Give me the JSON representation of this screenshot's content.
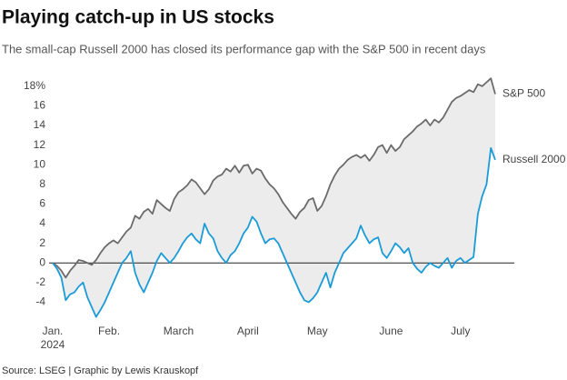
{
  "chart_data": {
    "type": "line",
    "title": "Playing catch-up in US stocks",
    "subtitle": "The small-cap Russell 2000 has closed its performance gap with the S&P 500 in recent days",
    "source": "Source: LSEG | Graphic by Lewis Krauskopf",
    "x_sublabel": "2024",
    "categories": [
      "Jan.",
      null,
      null,
      null,
      null,
      null,
      null,
      null,
      null,
      null,
      null,
      null,
      null,
      "Feb.",
      null,
      null,
      null,
      null,
      null,
      null,
      null,
      null,
      null,
      null,
      null,
      null,
      null,
      null,
      null,
      "March",
      null,
      null,
      null,
      null,
      null,
      null,
      null,
      null,
      null,
      null,
      null,
      null,
      null,
      null,
      null,
      "April",
      null,
      null,
      null,
      null,
      null,
      null,
      null,
      null,
      null,
      null,
      null,
      null,
      null,
      null,
      null,
      "May",
      null,
      null,
      null,
      null,
      null,
      null,
      null,
      null,
      null,
      null,
      null,
      null,
      null,
      null,
      null,
      null,
      "June",
      null,
      null,
      null,
      null,
      null,
      null,
      null,
      null,
      null,
      null,
      null,
      null,
      null,
      null,
      null,
      "July",
      null,
      null,
      null,
      null,
      null,
      null,
      null,
      null
    ],
    "series": [
      {
        "name": "S&P 500",
        "color": "#6b6b6b",
        "values": [
          0,
          -0.3,
          -0.8,
          -1.5,
          -0.8,
          -0.3,
          0.3,
          0.2,
          0,
          -0.2,
          0.3,
          1.0,
          1.6,
          2.0,
          2.3,
          2.0,
          2.6,
          3.2,
          3.6,
          4.8,
          4.5,
          5.2,
          5.5,
          5.0,
          6.4,
          6.0,
          5.6,
          5.3,
          6.5,
          7.2,
          7.5,
          7.9,
          8.5,
          8.2,
          7.6,
          7.0,
          7.5,
          8.4,
          8.8,
          9.0,
          9.6,
          9.3,
          9.9,
          9.2,
          9.9,
          10.0,
          9.1,
          9.6,
          9.4,
          8.6,
          8.0,
          7.6,
          7.0,
          6.2,
          5.6,
          5.0,
          4.5,
          5.2,
          5.6,
          6.4,
          6.6,
          5.3,
          5.8,
          6.8,
          8.0,
          8.9,
          9.6,
          10.0,
          10.5,
          10.8,
          11.0,
          10.7,
          11.0,
          10.4,
          11.0,
          11.8,
          12.0,
          11.2,
          12.0,
          11.4,
          11.8,
          12.6,
          13.0,
          13.4,
          13.9,
          14.2,
          14.6,
          14.0,
          14.6,
          14.3,
          14.8,
          15.6,
          16.4,
          16.8,
          17.0,
          17.3,
          17.6,
          17.4,
          18.2,
          18.0,
          18.4,
          18.8,
          17.2
        ]
      },
      {
        "name": "Russell 2000",
        "color": "#1a9bd7",
        "values": [
          0,
          -0.6,
          -1.5,
          -3.8,
          -3.2,
          -3.0,
          -2.4,
          -2.0,
          -3.5,
          -4.5,
          -5.5,
          -4.8,
          -4.0,
          -3.0,
          -2.0,
          -1.0,
          0,
          0.5,
          1.2,
          -1.0,
          -2.2,
          -3.0,
          -2.0,
          -1.0,
          0.2,
          1.0,
          0.5,
          0,
          0.5,
          1.2,
          2.0,
          2.6,
          3.0,
          2.4,
          2.0,
          4.0,
          3.0,
          2.5,
          1.2,
          0.5,
          0,
          0.8,
          1.2,
          2.0,
          3.0,
          3.6,
          4.7,
          4.2,
          3.0,
          2.0,
          2.4,
          2.5,
          2.0,
          1.0,
          0,
          -1.0,
          -2.0,
          -3.0,
          -3.8,
          -4.0,
          -3.6,
          -3.0,
          -2.0,
          -1.0,
          -2.5,
          -1.0,
          0,
          1.0,
          1.5,
          2.0,
          2.5,
          3.8,
          2.8,
          2.0,
          2.4,
          2.6,
          1.0,
          0.5,
          1.2,
          2.0,
          1.6,
          1.0,
          1.5,
          0,
          -0.6,
          -1.0,
          -0.4,
          0,
          -0.3,
          -0.5,
          0,
          0.5,
          -0.5,
          0.2,
          0.5,
          0,
          0.3,
          0.6,
          5.0,
          6.8,
          8.0,
          11.7,
          10.5
        ]
      }
    ],
    "band_color": "#ececec",
    "ylim": [
      -6,
      19
    ],
    "yticks": [
      -4,
      -2,
      0,
      2,
      4,
      6,
      8,
      10,
      12,
      14,
      16,
      {
        "value": 18,
        "label": "18%"
      }
    ],
    "zero_line": true,
    "grid": false
  }
}
